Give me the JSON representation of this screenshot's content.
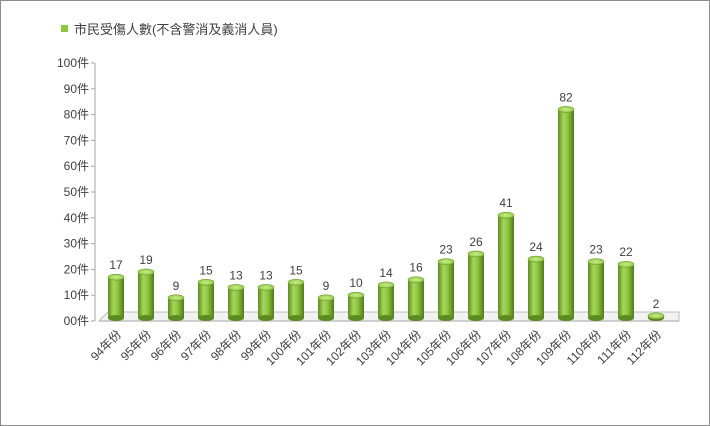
{
  "chart_data": {
    "type": "bar",
    "style": "3d-cylinder",
    "series": [
      {
        "name": "市民受傷人數(不含警消及義消人員)",
        "color": "#8dc63f",
        "values": [
          17,
          19,
          9,
          15,
          13,
          13,
          15,
          9,
          10,
          14,
          16,
          23,
          26,
          41,
          24,
          82,
          23,
          22,
          2
        ]
      }
    ],
    "categories": [
      "94年份",
      "95年份",
      "96年份",
      "97年份",
      "98年份",
      "99年份",
      "100年份",
      "101年份",
      "102年份",
      "103年份",
      "104年份",
      "105年份",
      "106年份",
      "107年份",
      "108年份",
      "109年份",
      "110年份",
      "111年份",
      "112年份"
    ],
    "ylim": [
      0,
      100
    ],
    "yticks": [
      "00件",
      "10件",
      "20件",
      "30件",
      "40件",
      "50件",
      "60件",
      "70件",
      "80件",
      "90件",
      "100件"
    ],
    "ytick_values": [
      0,
      10,
      20,
      30,
      40,
      50,
      60,
      70,
      80,
      90,
      100
    ],
    "legend_position": "top-left",
    "grid": false
  }
}
